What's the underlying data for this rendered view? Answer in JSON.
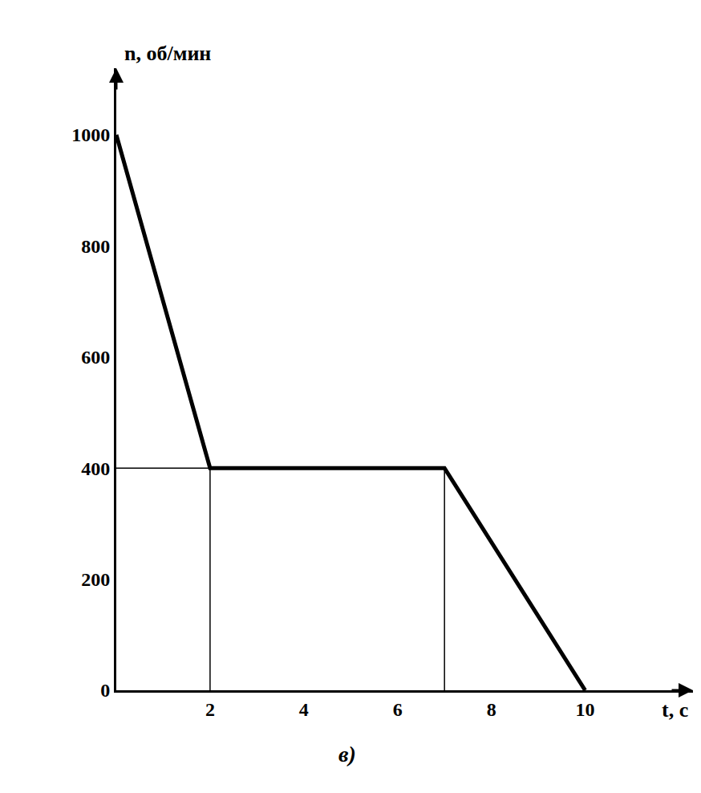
{
  "chart_data": {
    "type": "line",
    "x": [
      0,
      2,
      7,
      10
    ],
    "values": [
      1000,
      400,
      400,
      0
    ],
    "xlim": [
      0,
      12.3
    ],
    "ylim": [
      0,
      1120
    ],
    "xticks": [
      2,
      4,
      6,
      8,
      10
    ],
    "yticks": [
      0,
      200,
      400,
      600,
      800,
      1000
    ],
    "xlabel": "t, с",
    "ylabel": "n, об/мин",
    "annotation": "в)",
    "color": "#000000",
    "grid": false
  }
}
